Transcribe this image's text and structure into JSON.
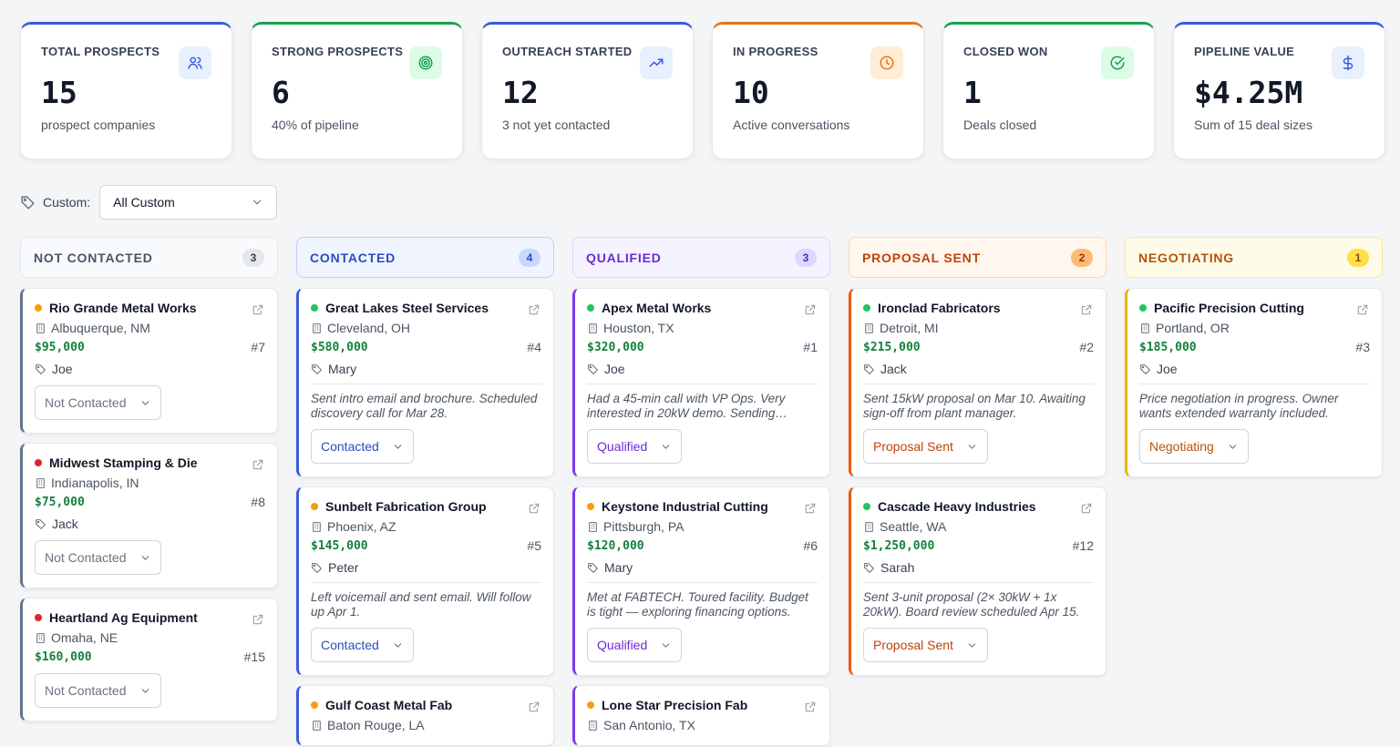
{
  "stats": [
    {
      "title": "TOTAL PROSPECTS",
      "value": "15",
      "sub": "prospect companies",
      "icon": "users-icon",
      "accent": "#3b5bdb"
    },
    {
      "title": "STRONG PROSPECTS",
      "value": "6",
      "sub": "40% of pipeline",
      "icon": "target-icon",
      "accent": "#16a34a"
    },
    {
      "title": "OUTREACH STARTED",
      "value": "12",
      "sub": "3 not yet contacted",
      "icon": "trend-up-icon",
      "accent": "#3b5bdb"
    },
    {
      "title": "IN PROGRESS",
      "value": "10",
      "sub": "Active conversations",
      "icon": "clock-icon",
      "accent": "#ea7317"
    },
    {
      "title": "CLOSED WON",
      "value": "1",
      "sub": "Deals closed",
      "icon": "check-circle-icon",
      "accent": "#16a34a"
    },
    {
      "title": "PIPELINE VALUE",
      "value": "$4.25M",
      "sub": "Sum of 15 deal sizes",
      "icon": "dollar-icon",
      "accent": "#3b5bdb"
    }
  ],
  "filter": {
    "label": "Custom:",
    "value": "All Custom"
  },
  "columns": [
    {
      "title": "NOT CONTACTED",
      "count": "3",
      "cards": [
        {
          "name": "Rio Grande Metal Works",
          "location": "Albuquerque, NM",
          "value": "$95,000",
          "num": "#7",
          "owner": "Joe",
          "note": "",
          "status": "Not Contacted",
          "dot": "#f59e0b"
        },
        {
          "name": "Midwest Stamping & Die",
          "location": "Indianapolis, IN",
          "value": "$75,000",
          "num": "#8",
          "owner": "Jack",
          "note": "",
          "status": "Not Contacted",
          "dot": "#dc2626"
        },
        {
          "name": "Heartland Ag Equipment",
          "location": "Omaha, NE",
          "value": "$160,000",
          "num": "#15",
          "owner": "",
          "note": "",
          "status": "Not Contacted",
          "dot": "#dc2626"
        }
      ]
    },
    {
      "title": "CONTACTED",
      "count": "4",
      "cards": [
        {
          "name": "Great Lakes Steel Services",
          "location": "Cleveland, OH",
          "value": "$580,000",
          "num": "#4",
          "owner": "Mary",
          "note": "Sent intro email and brochure. Scheduled discovery call for Mar 28.",
          "status": "Contacted",
          "dot": "#22c55e"
        },
        {
          "name": "Sunbelt Fabrication Group",
          "location": "Phoenix, AZ",
          "value": "$145,000",
          "num": "#5",
          "owner": "Peter",
          "note": "Left voicemail and sent email. Will follow up Apr 1.",
          "status": "Contacted",
          "dot": "#f59e0b"
        },
        {
          "name": "Gulf Coast Metal Fab",
          "location": "Baton Rouge, LA",
          "value": "",
          "num": "",
          "owner": "",
          "note": "",
          "status": "",
          "dot": "#f59e0b"
        }
      ]
    },
    {
      "title": "QUALIFIED",
      "count": "3",
      "cards": [
        {
          "name": "Apex Metal Works",
          "location": "Houston, TX",
          "value": "$320,000",
          "num": "#1",
          "owner": "Joe",
          "note": "Had a 45-min call with VP Ops. Very interested in 20kW demo. Sending…",
          "status": "Qualified",
          "dot": "#22c55e"
        },
        {
          "name": "Keystone Industrial Cutting",
          "location": "Pittsburgh, PA",
          "value": "$120,000",
          "num": "#6",
          "owner": "Mary",
          "note": "Met at FABTECH. Toured facility. Budget is tight — exploring financing options.",
          "status": "Qualified",
          "dot": "#f59e0b"
        },
        {
          "name": "Lone Star Precision Fab",
          "location": "San Antonio, TX",
          "value": "",
          "num": "",
          "owner": "",
          "note": "",
          "status": "",
          "dot": "#f59e0b"
        }
      ]
    },
    {
      "title": "PROPOSAL SENT",
      "count": "2",
      "cards": [
        {
          "name": "Ironclad Fabricators",
          "location": "Detroit, MI",
          "value": "$215,000",
          "num": "#2",
          "owner": "Jack",
          "note": "Sent 15kW proposal on Mar 10. Awaiting sign-off from plant manager.",
          "status": "Proposal Sent",
          "dot": "#22c55e"
        },
        {
          "name": "Cascade Heavy Industries",
          "location": "Seattle, WA",
          "value": "$1,250,000",
          "num": "#12",
          "owner": "Sarah",
          "note": "Sent 3-unit proposal (2× 30kW + 1x 20kW). Board review scheduled Apr 15.",
          "status": "Proposal Sent",
          "dot": "#22c55e"
        }
      ]
    },
    {
      "title": "NEGOTIATING",
      "count": "1",
      "cards": [
        {
          "name": "Pacific Precision Cutting",
          "location": "Portland, OR",
          "value": "$185,000",
          "num": "#3",
          "owner": "Joe",
          "note": "Price negotiation in progress. Owner wants extended warranty included.",
          "status": "Negotiating",
          "dot": "#22c55e"
        }
      ]
    }
  ],
  "theme": {
    "col0": {
      "accent": "#64748b",
      "head_bg": "#f8fafc",
      "head_border": "#e2e8f0",
      "head_text": "#4b5563",
      "count_bg": "#e5e7eb",
      "count_text": "#374151",
      "status_text": "#6b7280"
    },
    "col1": {
      "accent": "#3b5bdb",
      "head_bg": "#eff4ff",
      "head_border": "#bfd0fb",
      "head_text": "#2b4cc0",
      "count_bg": "#c7d7fe",
      "count_text": "#2b4cc0",
      "status_text": "#2b4cc0"
    },
    "col2": {
      "accent": "#7c3aed",
      "head_bg": "#f5f3ff",
      "head_border": "#ddd6fe",
      "head_text": "#6d28d9",
      "count_bg": "#ddd6fe",
      "count_text": "#5b21b6",
      "status_text": "#6d28d9"
    },
    "col3": {
      "accent": "#ea580c",
      "head_bg": "#fff7ed",
      "head_border": "#fed7aa",
      "head_text": "#c2410c",
      "count_bg": "#fdba74",
      "count_text": "#9a3412",
      "status_text": "#c2410c"
    },
    "col4": {
      "accent": "#eab308",
      "head_bg": "#fefce8",
      "head_border": "#fde68a",
      "head_text": "#b45309",
      "count_bg": "#fde047",
      "count_text": "#854d0e",
      "status_text": "#b45309"
    }
  }
}
